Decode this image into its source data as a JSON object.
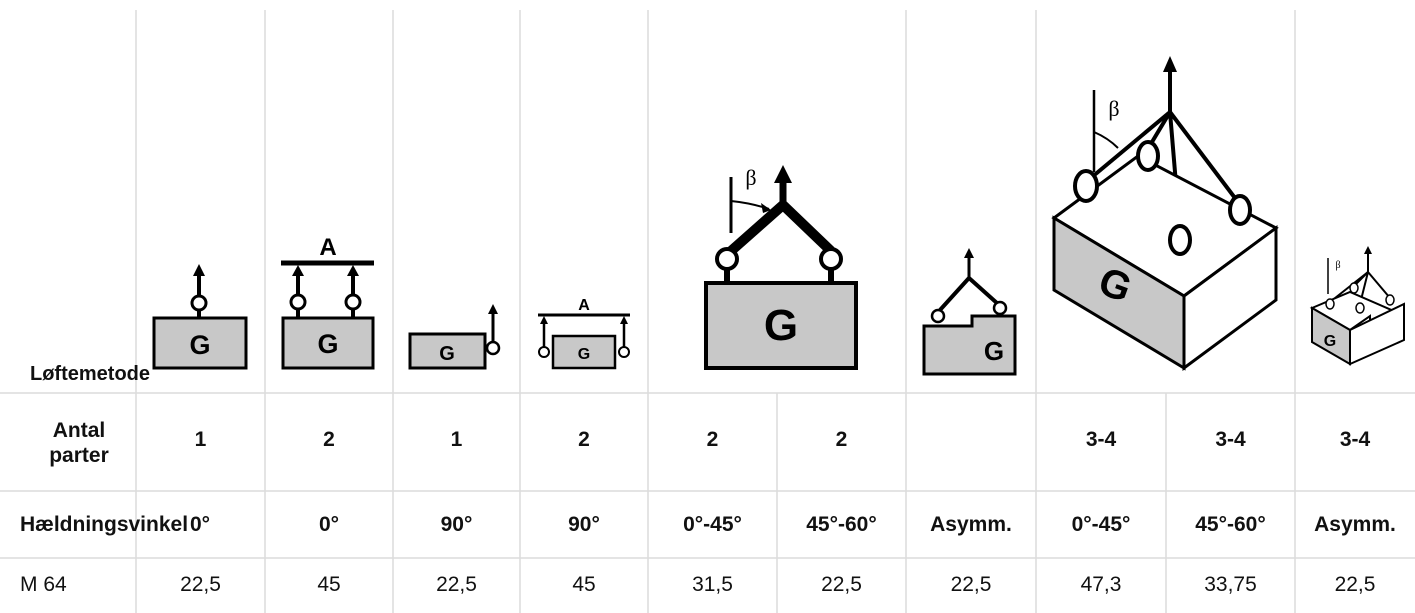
{
  "rows": {
    "method": {
      "label": "Løftemetode"
    },
    "parts": {
      "label": "Antal parter",
      "values": [
        "1",
        "2",
        "1",
        "2",
        "2",
        "2",
        "",
        "3-4",
        "3-4",
        "3-4"
      ]
    },
    "angle": {
      "label": "Hældningsvinkel",
      "values": [
        "0°",
        "0°",
        "90°",
        "90°",
        "0°-45°",
        "45°-60°",
        "Asymm.",
        "0°-45°",
        "45°-60°",
        "Asymm."
      ]
    },
    "m64": {
      "label": "M 64",
      "values": [
        "22,5",
        "45",
        "22,5",
        "45",
        "31,5",
        "22,5",
        "22,5",
        "47,3",
        "33,75",
        "22,5"
      ]
    }
  },
  "figures": {
    "load_letter": "G",
    "beam_letter": "A",
    "angle_symbol": "β"
  },
  "colors": {
    "load_fill": "#c8c8c8",
    "grid_line": "#dcdcdc",
    "ink": "#000000"
  }
}
